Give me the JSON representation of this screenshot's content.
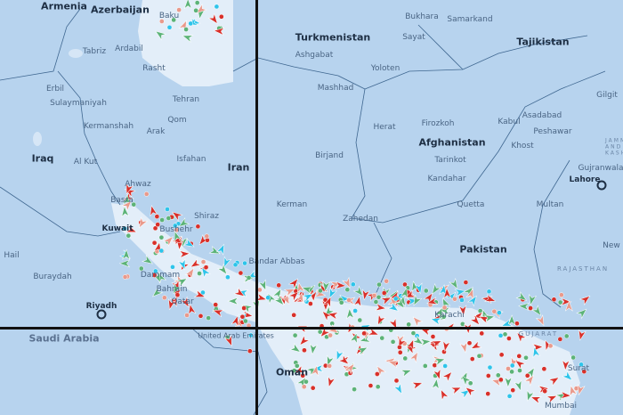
{
  "map": {
    "countries": [
      "Armenia",
      "Azerbaijan",
      "Turkmenistan",
      "Tajikistan",
      "Iraq",
      "Iran",
      "Afghanistan",
      "Pakistan",
      "Kuwait",
      "Bahrain",
      "Qatar",
      "Saudi Arabia",
      "United Arab Emirates",
      "Oman"
    ],
    "cities": [
      "Tabriz",
      "Ardabil",
      "Rasht",
      "Tehran",
      "Erbil",
      "Sulaymaniyah",
      "Kermanshah",
      "Qom",
      "Arak",
      "Isfahan",
      "Al Kut",
      "Ahwaz",
      "Basra",
      "Shiraz",
      "Bushehr",
      "Hail",
      "Buraydah",
      "Dammam",
      "Riyadh",
      "Bandar Abbas",
      "Kerman",
      "Zahedan",
      "Birjand",
      "Mashhad",
      "Ashgabat",
      "Bukhara",
      "Samarkand",
      "Sayat",
      "Yoloten",
      "Herat",
      "Firozkoh",
      "Kabul",
      "Asadabad",
      "Peshawar",
      "Khost",
      "Tarinkot",
      "Kandahar",
      "Quetta",
      "Multan",
      "Lahore",
      "Gujranwala",
      "Gilgit",
      "Karachi",
      "Surat",
      "Mumbai",
      "New Delhi",
      "Baku"
    ],
    "regions": [
      "RAJASTHAN",
      "GUJARAT",
      "JAMMU AND KASHMIR"
    ],
    "colors": {
      "land": "#b7d3ee",
      "water": "#e3eef9",
      "border": "#3f6790",
      "vessel_tanker": "#d8302a",
      "vessel_cargo": "#5cb378",
      "vessel_passenger": "#2ec4ea",
      "vessel_other": "#e99a8c"
    }
  }
}
